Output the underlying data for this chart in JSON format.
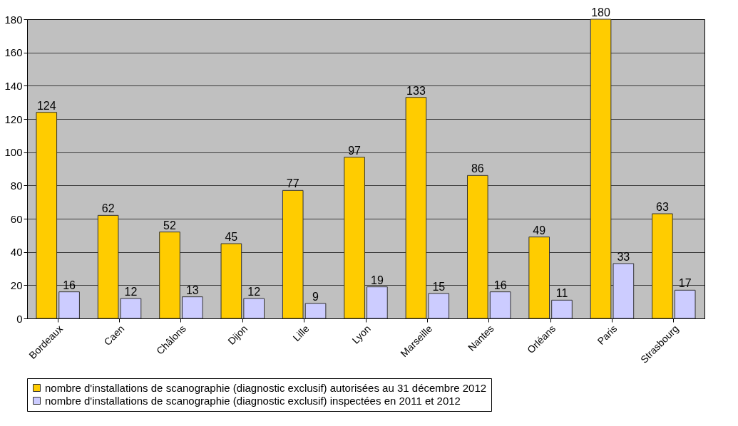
{
  "chart_data": {
    "type": "bar",
    "categories": [
      "Bordeaux",
      "Caen",
      "Châlons",
      "Dijon",
      "Lille",
      "Lyon",
      "Marseille",
      "Nantes",
      "Orléans",
      "Paris",
      "Strasbourg"
    ],
    "series": [
      {
        "name": "nombre d'installations de scanographie (diagnostic exclusif) autorisées au 31 décembre 2012",
        "color": "#ffcc00",
        "values": [
          124,
          62,
          52,
          45,
          77,
          97,
          133,
          86,
          49,
          180,
          63
        ]
      },
      {
        "name": "nombre d'installations de scanographie (diagnostic exclusif) inspectées en 2011 et 2012",
        "color": "#ccccff",
        "values": [
          16,
          12,
          13,
          12,
          9,
          19,
          15,
          16,
          11,
          33,
          17
        ]
      }
    ],
    "ylim": [
      0,
      180
    ],
    "yticks": [
      0,
      20,
      40,
      60,
      80,
      100,
      120,
      140,
      160,
      180
    ],
    "grid": "y",
    "legend": "bottom",
    "data_labels": true
  }
}
